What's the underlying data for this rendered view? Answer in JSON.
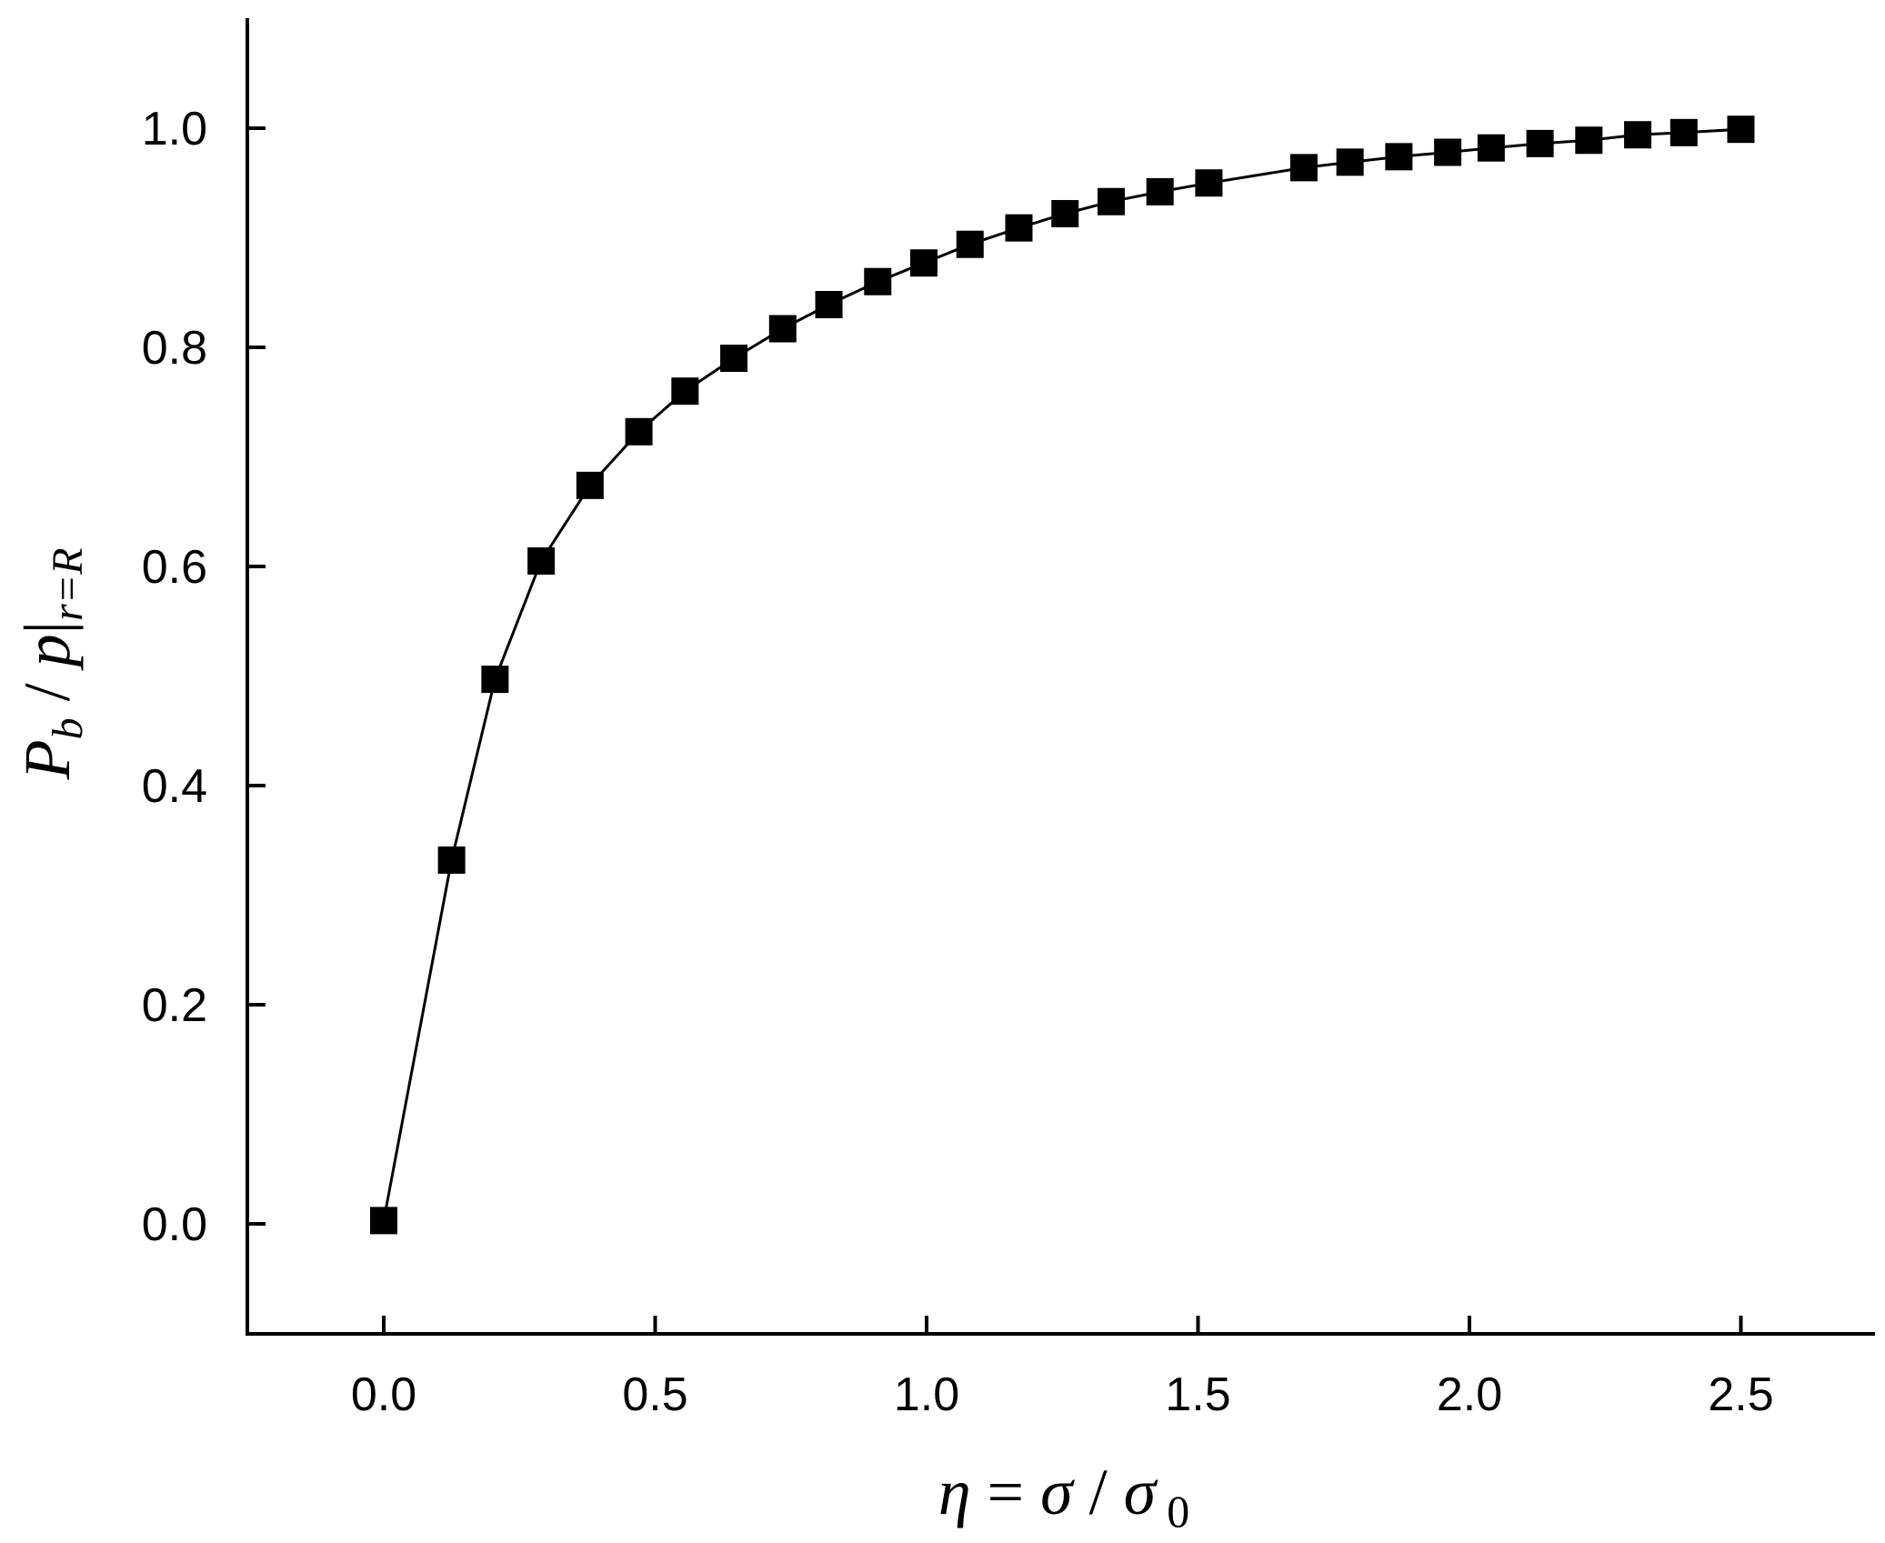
{
  "chart_data": {
    "type": "scatter",
    "line": true,
    "marker": "square",
    "xlabel": "η = σ / σ 0",
    "xlabel_parts": {
      "eta": "η",
      "eq": " = ",
      "sigma": "σ",
      "slash": " / ",
      "sigma0": "σ",
      "sub0": "0"
    },
    "ylabel": "P_b / p|_{r=R}",
    "ylabel_parts": {
      "P": "P",
      "b": "b",
      "slash": " / ",
      "p": "p",
      "bar": "|",
      "sub": "r=R"
    },
    "xlim": [
      -0.25,
      2.75
    ],
    "ylim": [
      -0.1,
      1.1
    ],
    "x_ticks": [
      "0.0",
      "0.5",
      "1.0",
      "1.5",
      "2.0",
      "2.5"
    ],
    "y_ticks": [
      "0.0",
      "0.2",
      "0.4",
      "0.6",
      "0.8",
      "1.0"
    ],
    "series": [
      {
        "x": [
          0.0,
          0.125,
          0.205,
          0.29,
          0.38,
          0.47,
          0.555,
          0.645,
          0.735,
          0.82,
          0.91,
          0.995,
          1.08,
          1.17,
          1.255,
          1.34,
          1.43,
          1.52,
          1.695,
          1.78,
          1.87,
          1.96,
          2.04,
          2.13,
          2.22,
          2.31,
          2.395,
          2.5
        ],
        "y": [
          0.003,
          0.332,
          0.497,
          0.605,
          0.674,
          0.723,
          0.76,
          0.79,
          0.817,
          0.839,
          0.86,
          0.877,
          0.894,
          0.909,
          0.922,
          0.933,
          0.942,
          0.95,
          0.964,
          0.969,
          0.974,
          0.978,
          0.982,
          0.986,
          0.989,
          0.994,
          0.996,
          0.999
        ]
      }
    ]
  }
}
